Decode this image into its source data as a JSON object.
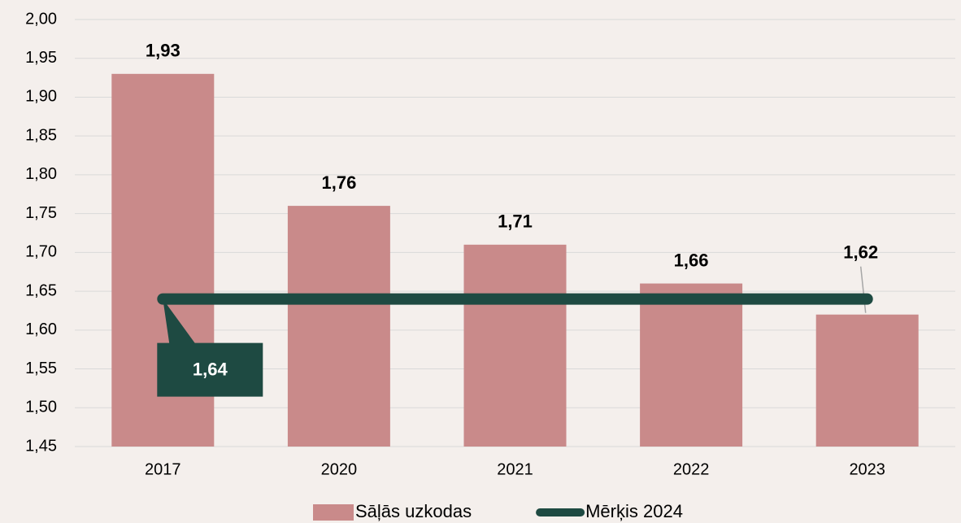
{
  "chart_data": {
    "type": "bar",
    "categories": [
      "2017",
      "2020",
      "2021",
      "2022",
      "2023"
    ],
    "series": [
      {
        "name": "Sāļās uzkodas",
        "type": "bar",
        "color": "#c98a8a",
        "values": [
          1.93,
          1.76,
          1.71,
          1.66,
          1.62
        ],
        "value_labels": [
          "1,93",
          "1,76",
          "1,71",
          "1,66",
          "1,62"
        ]
      },
      {
        "name": "Mērķis 2024",
        "type": "line",
        "color": "#1e4a42",
        "values": [
          1.64,
          1.64,
          1.64,
          1.64,
          1.64
        ],
        "value_labels": [
          "1,64",
          null,
          null,
          null,
          null
        ]
      }
    ],
    "ylim": [
      1.45,
      2.0
    ],
    "yticks": [
      {
        "value": 1.45,
        "label": "1,45"
      },
      {
        "value": 1.5,
        "label": "1,50"
      },
      {
        "value": 1.55,
        "label": "1,55"
      },
      {
        "value": 1.6,
        "label": "1,60"
      },
      {
        "value": 1.65,
        "label": "1,65"
      },
      {
        "value": 1.7,
        "label": "1,70"
      },
      {
        "value": 1.75,
        "label": "1,75"
      },
      {
        "value": 1.8,
        "label": "1,80"
      },
      {
        "value": 1.85,
        "label": "1,85"
      },
      {
        "value": 1.9,
        "label": "1,90"
      },
      {
        "value": 1.95,
        "label": "1,95"
      },
      {
        "value": 2.0,
        "label": "2,00"
      }
    ],
    "grid": true,
    "legend": "bottom"
  }
}
